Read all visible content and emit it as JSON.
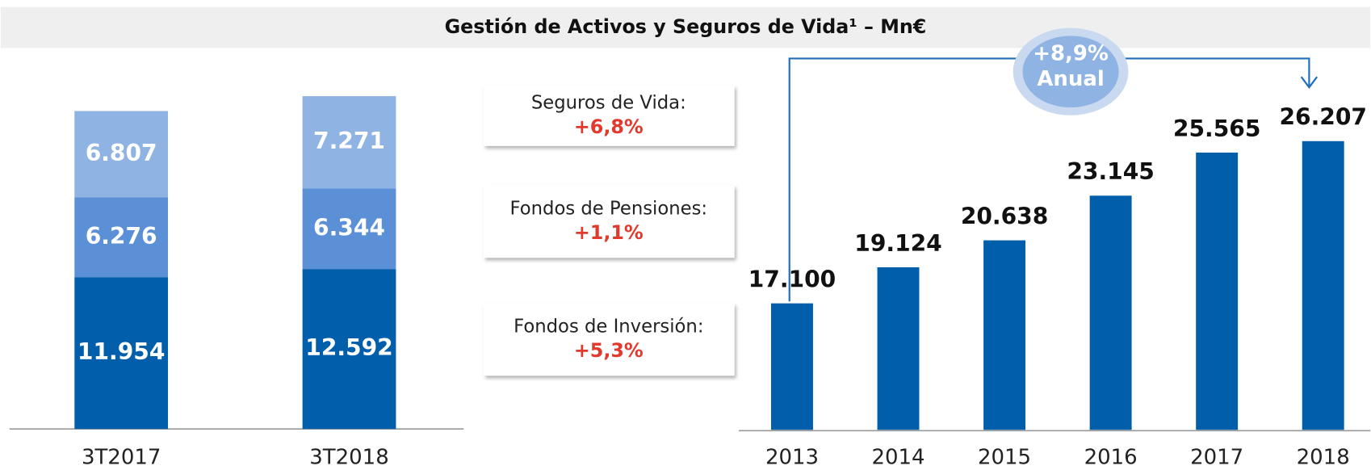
{
  "title": "Gestión de Activos y Seguros de Vida¹ – Mn€",
  "chart_data": [
    {
      "type": "stacked_bar",
      "categories": [
        "3T2017",
        "3T2018"
      ],
      "ylim": [
        0,
        28000
      ],
      "series": [
        {
          "color": "#005eab",
          "values": [
            11954,
            12592
          ],
          "value_labels": [
            "11.954",
            "12.592"
          ]
        },
        {
          "color": "#5b8fd6",
          "values": [
            6276,
            6344
          ],
          "value_labels": [
            "6.276",
            "6.344"
          ]
        },
        {
          "color": "#8fb3e3",
          "values": [
            6807,
            7271
          ],
          "value_labels": [
            "6.807",
            "7.271"
          ]
        }
      ]
    },
    {
      "type": "bar",
      "categories": [
        "2013",
        "2014",
        "2015",
        "2016",
        "2017",
        "2018"
      ],
      "values": [
        17100,
        19124,
        20638,
        23145,
        25565,
        26207
      ],
      "value_labels": [
        "17.100",
        "19.124",
        "20.638",
        "23.145",
        "25.565",
        "26.207"
      ],
      "color": "#005eab",
      "ylim": [
        10000,
        28000
      ],
      "annotation": [
        "+8,9%",
        "Anual"
      ]
    }
  ],
  "notes": [
    {
      "label": "Seguros de Vida:",
      "change": "+6,8%"
    },
    {
      "label": "Fondos de Pensiones:",
      "change": "+1,1%"
    },
    {
      "label": "Fondos de Inversión:",
      "change": "+5,3%"
    }
  ]
}
